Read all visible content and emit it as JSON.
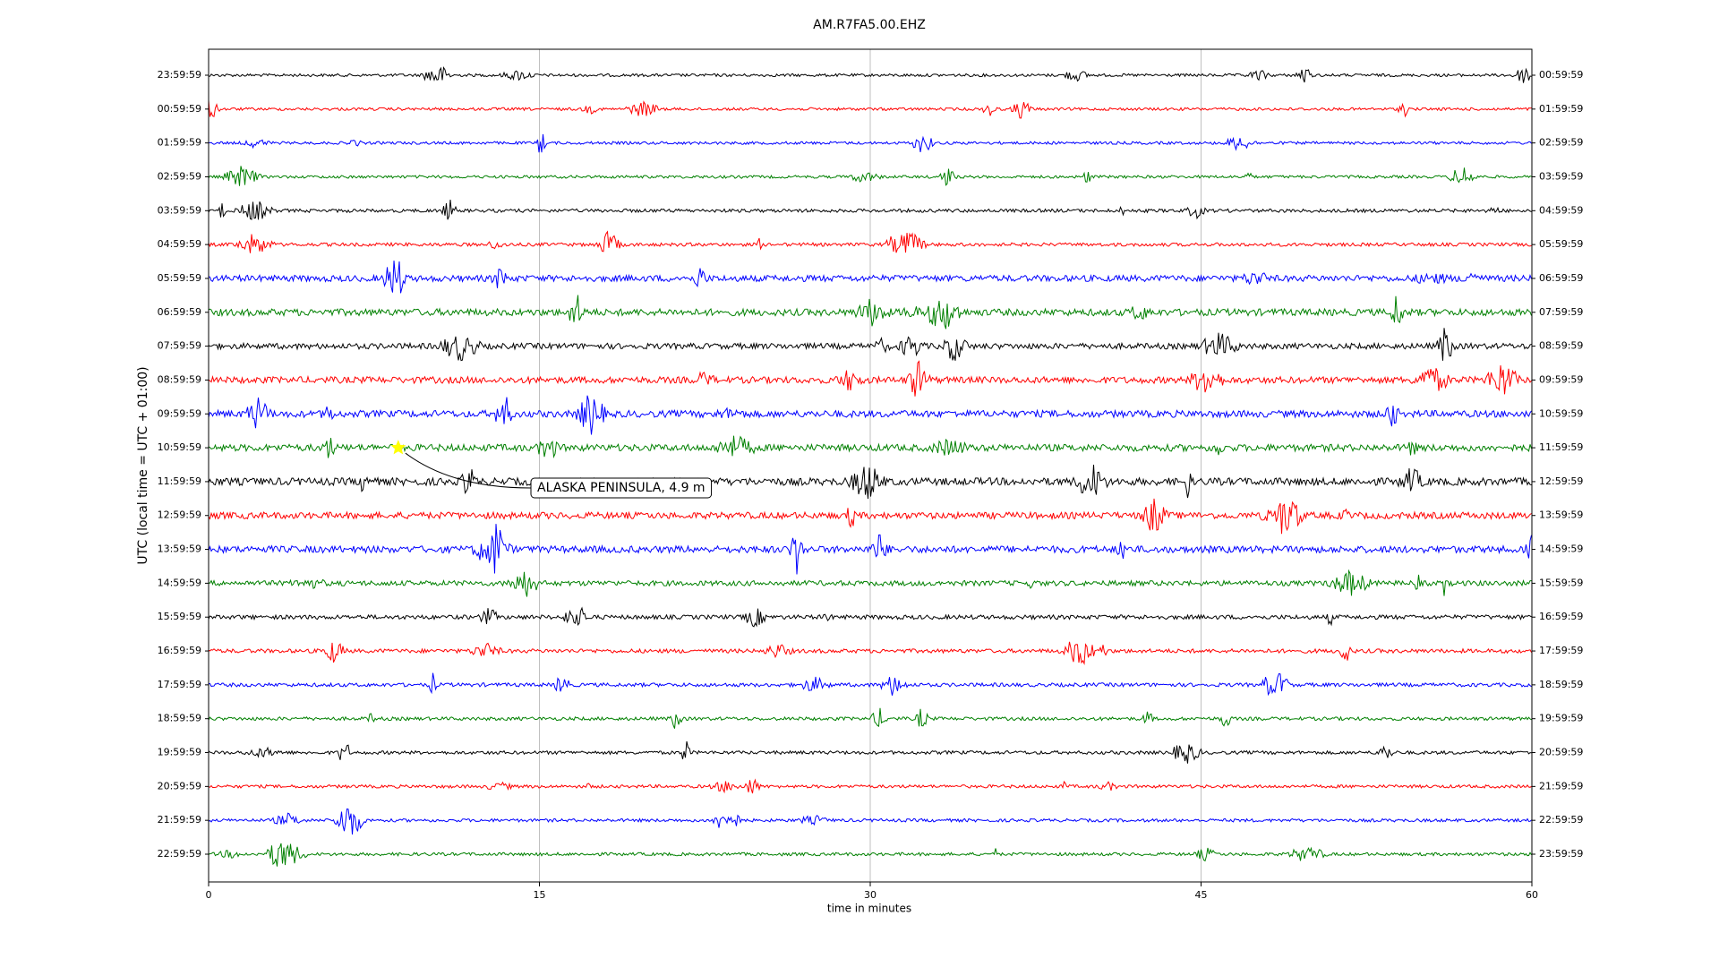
{
  "chart_data": {
    "type": "helicorder",
    "title": "AM.R7FA5.00.EHZ",
    "xlabel": "time in minutes",
    "ylabel": "UTC (local time = UTC + 01:00)",
    "xlim": [
      0,
      60
    ],
    "xticks": [
      0,
      15,
      30,
      45,
      60
    ],
    "grid": true,
    "colors": [
      "black",
      "red",
      "blue",
      "green"
    ],
    "rows": [
      "23:59:59",
      "00:59:59",
      "01:59:59",
      "02:59:59",
      "03:59:59",
      "04:59:59",
      "05:59:59",
      "06:59:59",
      "07:59:59",
      "08:59:59",
      "09:59:59",
      "10:59:59",
      "11:59:59",
      "12:59:59",
      "13:59:59",
      "14:59:59",
      "15:59:59",
      "16:59:59",
      "17:59:59",
      "18:59:59",
      "19:59:59",
      "20:59:59",
      "21:59:59",
      "22:59:59"
    ],
    "rows_right": [
      "00:59:59",
      "01:59:59",
      "02:59:59",
      "03:59:59",
      "04:59:59",
      "05:59:59",
      "06:59:59",
      "07:59:59",
      "08:59:59",
      "09:59:59",
      "10:59:59",
      "11:59:59",
      "12:59:59",
      "13:59:59",
      "14:59:59",
      "15:59:59",
      "16:59:59",
      "17:59:59",
      "18:59:59",
      "19:59:59",
      "20:59:59",
      "21:59:59",
      "22:59:59",
      "23:59:59"
    ],
    "event": {
      "text": "ALASKA PENINSULA, 4.9 m",
      "x": 8.6,
      "row": 11
    }
  }
}
